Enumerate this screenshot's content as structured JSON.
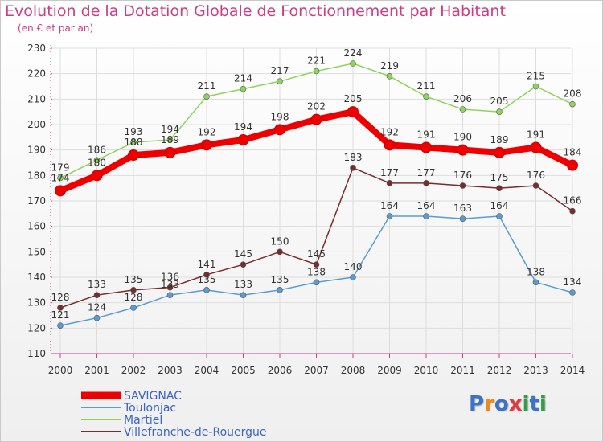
{
  "title": "Evolution de la Dotation Globale de Fonctionnement par Habitant",
  "subtitle": "(en € et par an)",
  "logo": {
    "text": "Proxiti",
    "letters": [
      "P",
      "r",
      "o",
      "x",
      "i",
      "t",
      "i"
    ],
    "colors": [
      "#3b73c8",
      "#ec8a1d",
      "#3b73c8",
      "#e03b3b",
      "#2f9e44",
      "#3b73c8",
      "#2f9e44"
    ]
  },
  "chart_data": {
    "type": "line",
    "title": "Evolution de la Dotation Globale de Fonctionnement par Habitant",
    "subtitle": "(en € et par an)",
    "xlabel": "",
    "ylabel": "",
    "x": [
      "2000",
      "2001",
      "2002",
      "2003",
      "2004",
      "2005",
      "2006",
      "2007",
      "2008",
      "2009",
      "2010",
      "2011",
      "2012",
      "2013",
      "2014"
    ],
    "ylim": [
      110,
      230
    ],
    "yticks": [
      110,
      120,
      130,
      140,
      150,
      160,
      170,
      180,
      190,
      200,
      210,
      220,
      230
    ],
    "grid": true,
    "legend_position": "bottom-left",
    "series": [
      {
        "name": "SAVIGNAC",
        "color": "#ee0000",
        "emphasis": true,
        "values": [
          174,
          180,
          188,
          189,
          192,
          194,
          198,
          202,
          205,
          192,
          191,
          190,
          189,
          191,
          184
        ]
      },
      {
        "name": "Toulonjac",
        "color": "#5b9bd5",
        "emphasis": false,
        "values": [
          121,
          124,
          128,
          133,
          135,
          133,
          135,
          138,
          140,
          164,
          164,
          163,
          164,
          138,
          134
        ]
      },
      {
        "name": "Martiel",
        "color": "#8fd45a",
        "emphasis": false,
        "values": [
          179,
          186,
          193,
          194,
          211,
          214,
          217,
          221,
          224,
          219,
          211,
          206,
          205,
          215,
          208
        ]
      },
      {
        "name": "Villefranche-de-Rouergue",
        "color": "#7a2b2b",
        "emphasis": false,
        "values": [
          128,
          133,
          135,
          136,
          141,
          145,
          150,
          145,
          183,
          177,
          177,
          176,
          175,
          176,
          166
        ]
      }
    ]
  }
}
